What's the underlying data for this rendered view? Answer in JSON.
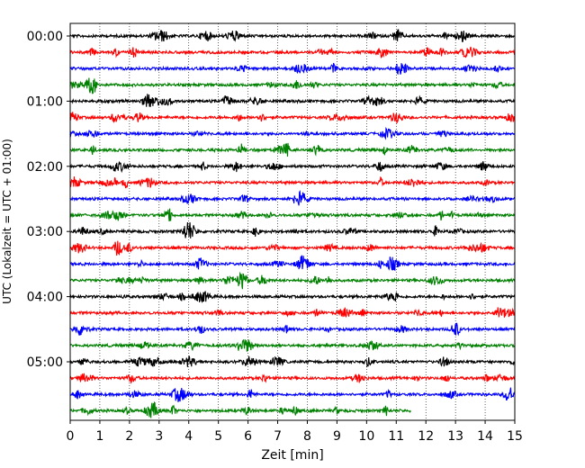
{
  "chart_data": {
    "type": "line",
    "title": "",
    "xlabel": "Zeit  [min]",
    "ylabel": "UTC (Lokalzeit = UTC + 01:00)",
    "xlim": [
      0,
      15
    ],
    "x_ticks": [
      "0",
      "1",
      "2",
      "3",
      "4",
      "5",
      "6",
      "7",
      "8",
      "9",
      "10",
      "11",
      "12",
      "13",
      "14",
      "15"
    ],
    "y_ticks": [
      "00:00",
      "01:00",
      "02:00",
      "03:00",
      "04:00",
      "05:00"
    ],
    "grid": "vertical dotted lines at each minute",
    "legend": "none",
    "trace_colors": [
      "#000000",
      "#ff0000",
      "#0000ff",
      "#008000"
    ],
    "trace_interval_min": 15,
    "traces_per_hour": 4,
    "trace_count": 24,
    "last_trace_end_min": 11.5
  }
}
